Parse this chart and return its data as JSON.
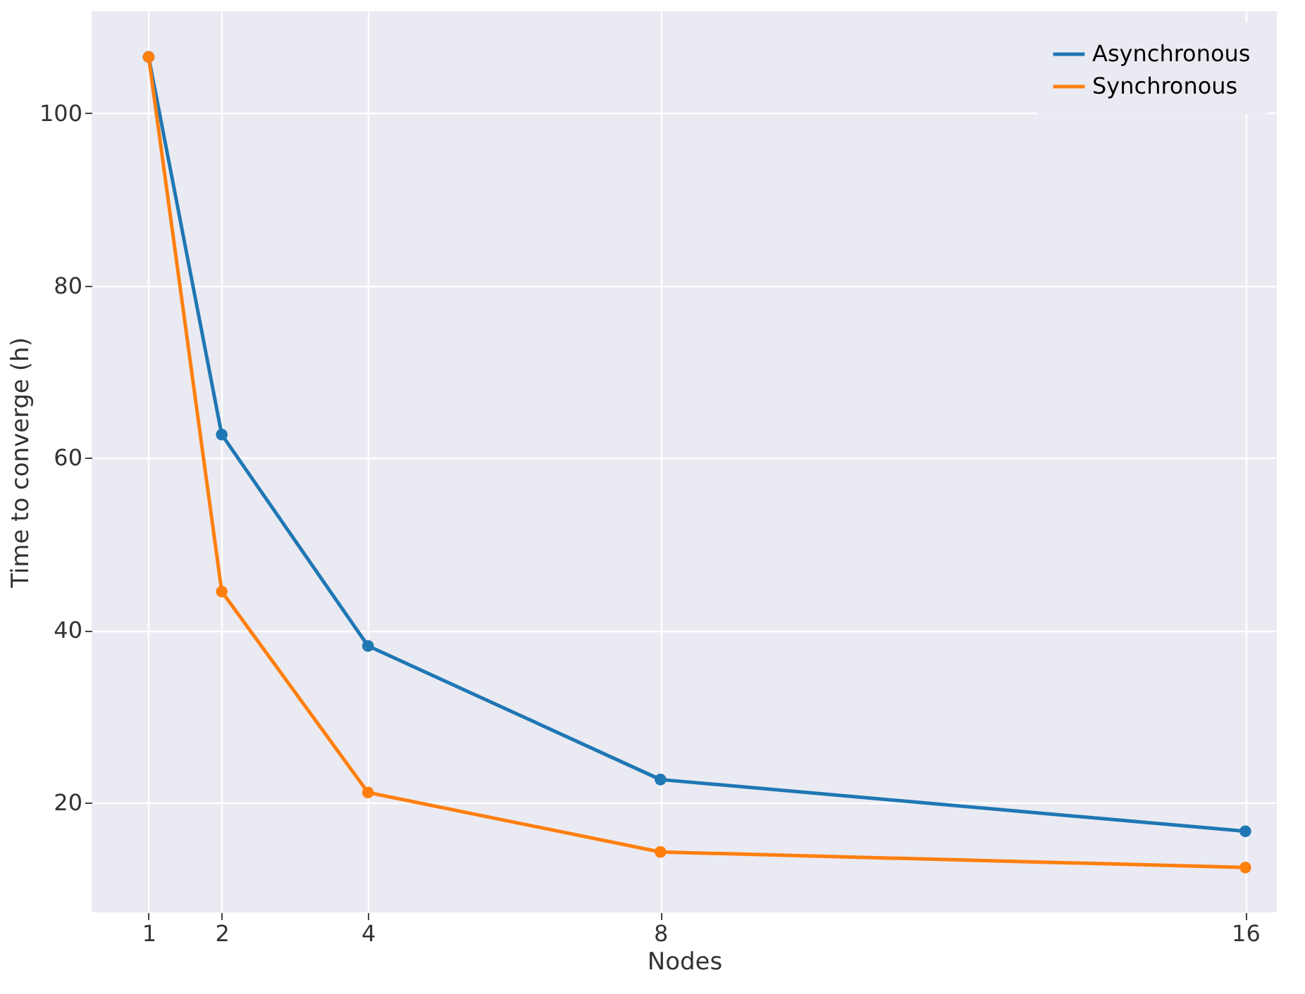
{
  "chart_data": {
    "type": "line",
    "xlabel": "Nodes",
    "ylabel": "Time to converge (h)",
    "x": [
      1,
      2,
      4,
      8,
      16
    ],
    "series": [
      {
        "name": "Asynchronous",
        "color": "#1f77b4",
        "values": [
          106.5,
          62.7,
          38.2,
          22.7,
          16.7
        ]
      },
      {
        "name": "Synchronous",
        "color": "#ff7f0e",
        "values": [
          106.5,
          44.5,
          21.2,
          14.3,
          12.5
        ]
      }
    ],
    "xlim": [
      0.22,
      16.43
    ],
    "xticks": [
      1,
      2,
      4,
      8,
      16
    ],
    "ylim": [
      7.3,
      111.8
    ],
    "yticks": [
      20,
      40,
      60,
      80,
      100
    ],
    "grid": true,
    "legend": "top right",
    "marker": "circle",
    "line_style": "solid"
  }
}
